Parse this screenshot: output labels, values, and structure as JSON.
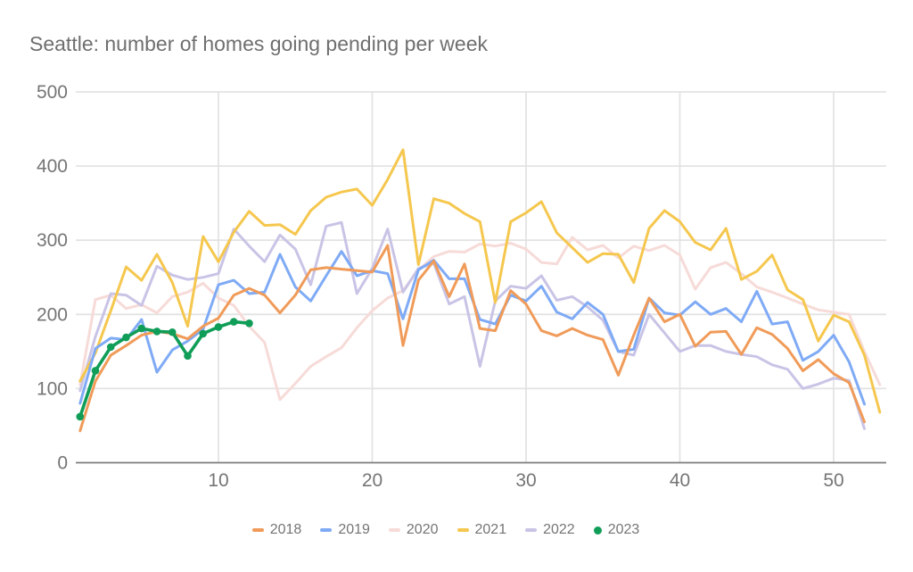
{
  "chart_data": {
    "type": "line",
    "title": "Seattle: number of homes going pending per week",
    "xlabel": "",
    "ylabel": "",
    "x_unit": "week of year",
    "xlim": [
      1,
      53.4
    ],
    "ylim": [
      0,
      500
    ],
    "x_ticks": [
      10,
      20,
      30,
      40,
      50
    ],
    "y_ticks": [
      0,
      100,
      200,
      300,
      400,
      500
    ],
    "grid": true,
    "legend_position": "bottom",
    "text_color": "#757575",
    "gridline_color": "#e3e3e3",
    "axis_line_color": "#7d7d7d",
    "series": [
      {
        "name": "2018",
        "color": "#f09b59",
        "style": "line",
        "start_week": 1,
        "values": [
          43,
          110,
          145,
          158,
          172,
          177,
          174,
          167,
          184,
          195,
          226,
          235,
          226,
          202,
          226,
          260,
          263,
          261,
          259,
          257,
          293,
          158,
          246,
          272,
          224,
          268,
          181,
          178,
          232,
          214,
          178,
          171,
          181,
          172,
          166,
          118,
          172,
          222,
          190,
          200,
          157,
          176,
          177,
          146,
          182,
          173,
          154,
          124,
          139,
          120,
          108,
          55
        ]
      },
      {
        "name": "2019",
        "color": "#7faaf5",
        "style": "line",
        "start_week": 1,
        "values": [
          80,
          154,
          168,
          166,
          193,
          122,
          152,
          164,
          180,
          240,
          246,
          228,
          230,
          281,
          237,
          218,
          252,
          285,
          252,
          259,
          255,
          194,
          260,
          273,
          248,
          248,
          193,
          187,
          226,
          218,
          238,
          203,
          194,
          216,
          200,
          150,
          153,
          222,
          202,
          199,
          217,
          200,
          208,
          190,
          231,
          187,
          190,
          138,
          150,
          172,
          136,
          79
        ]
      },
      {
        "name": "2020",
        "color": "#f6dbd8",
        "style": "line",
        "start_week": 1,
        "values": [
          105,
          220,
          226,
          208,
          213,
          202,
          224,
          230,
          242,
          222,
          212,
          184,
          162,
          85,
          107,
          130,
          143,
          155,
          182,
          205,
          222,
          232,
          260,
          278,
          285,
          284,
          295,
          292,
          296,
          288,
          270,
          268,
          304,
          287,
          293,
          276,
          292,
          286,
          293,
          280,
          234,
          263,
          270,
          255,
          237,
          230,
          222,
          214,
          206,
          203,
          200,
          150,
          105
        ]
      },
      {
        "name": "2021",
        "color": "#f5c74e",
        "style": "line",
        "start_week": 1,
        "values": [
          110,
          148,
          205,
          264,
          246,
          281,
          243,
          184,
          305,
          271,
          311,
          339,
          320,
          321,
          308,
          340,
          358,
          365,
          369,
          347,
          382,
          422,
          267,
          356,
          350,
          336,
          325,
          216,
          325,
          337,
          352,
          310,
          290,
          270,
          282,
          281,
          243,
          316,
          340,
          325,
          297,
          287,
          316,
          247,
          258,
          280,
          233,
          220,
          164,
          199,
          190,
          145,
          68
        ]
      },
      {
        "name": "2022",
        "color": "#c9c4e6",
        "style": "line",
        "start_week": 1,
        "values": [
          97,
          170,
          228,
          226,
          212,
          265,
          253,
          247,
          250,
          255,
          315,
          292,
          271,
          307,
          288,
          240,
          319,
          324,
          228,
          262,
          315,
          230,
          262,
          269,
          214,
          224,
          130,
          218,
          238,
          235,
          252,
          219,
          224,
          210,
          192,
          150,
          145,
          200,
          175,
          150,
          158,
          158,
          150,
          146,
          143,
          132,
          126,
          100,
          106,
          114,
          111,
          46
        ]
      },
      {
        "name": "2023",
        "color": "#109d58",
        "style": "line+markers",
        "start_week": 1,
        "values": [
          62,
          124,
          156,
          169,
          181,
          177,
          176,
          144,
          174,
          183,
          190,
          188
        ]
      }
    ]
  }
}
